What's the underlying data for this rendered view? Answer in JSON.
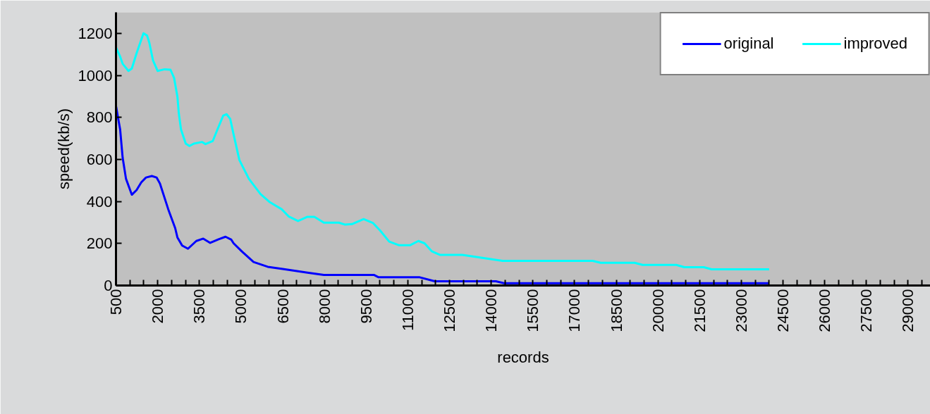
{
  "chart_data": {
    "type": "line",
    "xlabel": "records",
    "ylabel": "speed(kb/s)",
    "xlim": [
      500,
      29800
    ],
    "ylim": [
      0,
      1300
    ],
    "yticks": [
      0,
      200,
      400,
      600,
      800,
      1000,
      1200
    ],
    "xticks": [
      500,
      {
        "value": 1000,
        "label": null
      },
      {
        "value": 1500,
        "label": null
      },
      2000,
      {
        "value": 2500,
        "label": null
      },
      {
        "value": 3000,
        "label": null
      },
      3500,
      {
        "value": 4000,
        "label": null
      },
      {
        "value": 4500,
        "label": null
      },
      5000,
      {
        "value": 5500,
        "label": null
      },
      {
        "value": 6000,
        "label": null
      },
      6500,
      {
        "value": 7000,
        "label": null
      },
      {
        "value": 7500,
        "label": null
      },
      8000,
      {
        "value": 8500,
        "label": null
      },
      {
        "value": 9000,
        "label": null
      },
      9500,
      {
        "value": 10000,
        "label": null
      },
      {
        "value": 10500,
        "label": null
      },
      11000,
      {
        "value": 11500,
        "label": null
      },
      {
        "value": 12000,
        "label": null
      },
      12500,
      {
        "value": 13000,
        "label": null
      },
      {
        "value": 13500,
        "label": null
      },
      14000,
      {
        "value": 14500,
        "label": null
      },
      {
        "value": 15000,
        "label": null
      },
      15500,
      {
        "value": 16000,
        "label": null
      },
      {
        "value": 16500,
        "label": null
      },
      17000,
      {
        "value": 17500,
        "label": null
      },
      {
        "value": 18000,
        "label": null
      },
      18500,
      {
        "value": 19000,
        "label": null
      },
      {
        "value": 19500,
        "label": null
      },
      20000,
      {
        "value": 20500,
        "label": null
      },
      {
        "value": 21000,
        "label": null
      },
      21500,
      {
        "value": 22000,
        "label": null
      },
      {
        "value": 22500,
        "label": null
      },
      23000,
      {
        "value": 23500,
        "label": null
      },
      {
        "value": 24000,
        "label": null
      },
      24500,
      {
        "value": 25000,
        "label": null
      },
      {
        "value": 25500,
        "label": null
      },
      26000,
      {
        "value": 26500,
        "label": null
      },
      {
        "value": 27000,
        "label": null
      },
      27500,
      {
        "value": 28000,
        "label": null
      },
      {
        "value": 28500,
        "label": null
      },
      29000,
      {
        "value": 29500,
        "label": null
      }
    ],
    "grid": false,
    "legend": "top right",
    "series": [
      {
        "name": "original",
        "color": "#0000ff",
        "x": [
          500,
          650,
          740,
          860,
          1070,
          1240,
          1410,
          1580,
          1790,
          1960,
          2080,
          2380,
          2630,
          2710,
          2880,
          3090,
          3390,
          3640,
          3890,
          4190,
          4440,
          4650,
          4730,
          5030,
          5450,
          5960,
          6540,
          7390,
          7980,
          9790,
          9950,
          11430,
          11970,
          14170,
          14460,
          24000
        ],
        "values": [
          854,
          742,
          608,
          508,
          432,
          454,
          491,
          514,
          521,
          514,
          486,
          363,
          273,
          229,
          190,
          175,
          212,
          223,
          203,
          220,
          232,
          218,
          201,
          162,
          112,
          89,
          78,
          61,
          50,
          50,
          39,
          39,
          20,
          20,
          11,
          11
        ]
      },
      {
        "name": "improved",
        "color": "#00ffff",
        "x": [
          500,
          650,
          740,
          950,
          1070,
          1240,
          1490,
          1620,
          1700,
          1830,
          2000,
          2250,
          2460,
          2590,
          2710,
          2760,
          2840,
          3010,
          3140,
          3300,
          3600,
          3720,
          3980,
          4150,
          4360,
          4480,
          4610,
          4730,
          4940,
          5280,
          5700,
          6040,
          6460,
          6710,
          7050,
          7390,
          7640,
          7980,
          8520,
          8730,
          8990,
          9410,
          9740,
          10000,
          10330,
          10670,
          11090,
          11380,
          11600,
          11860,
          12150,
          12960,
          14410,
          17650,
          17940,
          19160,
          19450,
          20660,
          20950,
          21650,
          21930,
          24000
        ],
        "values": [
          1133,
          1089,
          1055,
          1021,
          1033,
          1105,
          1200,
          1189,
          1155,
          1072,
          1021,
          1029,
          1027,
          988,
          899,
          820,
          742,
          675,
          664,
          675,
          683,
          673,
          687,
          742,
          809,
          815,
          793,
          720,
          597,
          508,
          435,
          396,
          363,
          329,
          307,
          327,
          327,
          299,
          299,
          290,
          292,
          316,
          298,
          262,
          209,
          192,
          192,
          212,
          201,
          163,
          146,
          146,
          117,
          117,
          108,
          108,
          98,
          98,
          87,
          87,
          77,
          77
        ]
      }
    ]
  }
}
